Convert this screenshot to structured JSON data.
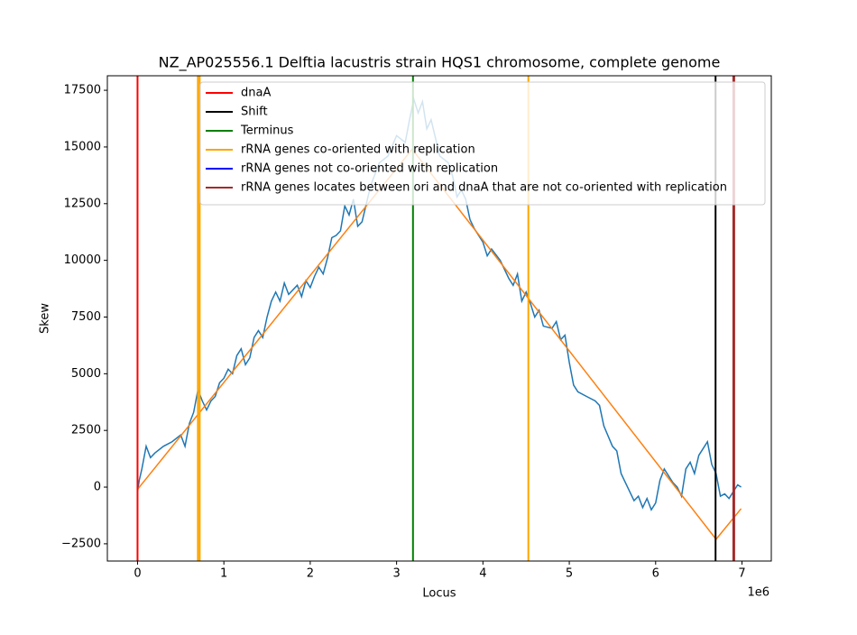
{
  "chart_data": {
    "type": "line",
    "title": "NZ_AP025556.1 Delftia lacustris strain HQS1 chromosome, complete genome",
    "x_label": "Locus",
    "y_label": "Skew",
    "x_offset_label": "1e6",
    "xlim": [
      -349500,
      7339500
    ],
    "ylim": [
      -3260,
      18140
    ],
    "xticks": [
      0,
      {
        "value": 1000000,
        "label": "1"
      },
      {
        "value": 2000000,
        "label": "2"
      },
      {
        "value": 3000000,
        "label": "3"
      },
      {
        "value": 4000000,
        "label": "4"
      },
      {
        "value": 5000000,
        "label": "5"
      },
      {
        "value": 6000000,
        "label": "6"
      },
      {
        "value": 7000000,
        "label": "7"
      }
    ],
    "yticks": [
      {
        "value": -2500,
        "label": "−2500"
      },
      0,
      2500,
      5000,
      7500,
      10000,
      12500,
      15000,
      17500
    ],
    "series": [
      {
        "color": "#1f77b4",
        "x": [
          0,
          20000,
          50000,
          100000,
          150000,
          200000,
          300000,
          400000,
          500000,
          550000,
          600000,
          650000,
          700000,
          750000,
          800000,
          850000,
          900000,
          950000,
          1000000,
          1050000,
          1100000,
          1150000,
          1200000,
          1250000,
          1300000,
          1350000,
          1400000,
          1450000,
          1500000,
          1550000,
          1600000,
          1650000,
          1700000,
          1750000,
          1800000,
          1850000,
          1900000,
          1950000,
          2000000,
          2050000,
          2100000,
          2150000,
          2200000,
          2250000,
          2300000,
          2350000,
          2400000,
          2450000,
          2500000,
          2550000,
          2600000,
          2650000,
          2700000,
          2800000,
          2900000,
          3000000,
          3100000,
          3150000,
          3200000,
          3250000,
          3300000,
          3350000,
          3400000,
          3500000,
          3600000,
          3650000,
          3700000,
          3750000,
          3800000,
          3850000,
          3900000,
          4000000,
          4050000,
          4100000,
          4200000,
          4300000,
          4350000,
          4400000,
          4450000,
          4500000,
          4550000,
          4600000,
          4650000,
          4700000,
          4800000,
          4850000,
          4900000,
          4950000,
          5000000,
          5050000,
          5100000,
          5200000,
          5300000,
          5350000,
          5400000,
          5500000,
          5550000,
          5600000,
          5650000,
          5700000,
          5750000,
          5800000,
          5850000,
          5900000,
          5950000,
          6000000,
          6050000,
          6100000,
          6150000,
          6200000,
          6250000,
          6300000,
          6350000,
          6400000,
          6450000,
          6500000,
          6550000,
          6600000,
          6650000,
          6700000,
          6750000,
          6800000,
          6850000,
          6900000,
          6950000,
          6990000
        ],
        "values": [
          -200,
          300,
          800,
          1800,
          1300,
          1500,
          1800,
          2000,
          2300,
          1800,
          2800,
          3300,
          4300,
          3800,
          3400,
          3800,
          4000,
          4600,
          4800,
          5200,
          5000,
          5800,
          6100,
          5400,
          5700,
          6600,
          6900,
          6600,
          7500,
          8200,
          8600,
          8200,
          9000,
          8500,
          8700,
          8900,
          8400,
          9100,
          8800,
          9300,
          9700,
          9400,
          10100,
          11000,
          11100,
          11300,
          12400,
          12000,
          12700,
          11500,
          11700,
          12500,
          13300,
          14300,
          14600,
          15500,
          15200,
          16200,
          17100,
          16500,
          17000,
          15800,
          16200,
          14600,
          14300,
          13700,
          12800,
          13100,
          12700,
          11800,
          11400,
          10800,
          10200,
          10500,
          10000,
          9200,
          8900,
          9400,
          8200,
          8600,
          8100,
          7500,
          7800,
          7100,
          7000,
          7300,
          6500,
          6700,
          5500,
          4500,
          4200,
          4000,
          3800,
          3600,
          2700,
          1800,
          1600,
          600,
          200,
          -200,
          -600,
          -400,
          -900,
          -500,
          -1000,
          -700,
          300,
          800,
          500,
          200,
          0,
          -400,
          800,
          1100,
          600,
          1400,
          1700,
          2000,
          1000,
          600,
          -400,
          -300,
          -500,
          -200,
          100,
          0
        ]
      },
      {
        "color": "#ff7f0e",
        "x": [
          0,
          3180000,
          6700000,
          6990000
        ],
        "values": [
          -100,
          14900,
          -2300,
          -950
        ]
      }
    ],
    "vlines": [
      {
        "name": "dnaA",
        "color": "#ff0000",
        "x": [
          0
        ]
      },
      {
        "name": "Shift",
        "color": "#000000",
        "x": [
          6694000
        ]
      },
      {
        "name": "Terminus",
        "color": "#008000",
        "x": [
          3190000
        ]
      },
      {
        "name": "rRNA genes co-oriented with replication",
        "color": "#ffa500",
        "x": [
          699000,
          720000,
          4526000
        ]
      },
      {
        "name": "rRNA genes not co-oriented with replication",
        "color": "#0000ff",
        "x": []
      },
      {
        "name": "rRNA genes locates between ori and dnaA that are not co-oriented with replication",
        "color": "#a52a2a",
        "x": [
          6900000,
          6910000
        ]
      }
    ]
  }
}
